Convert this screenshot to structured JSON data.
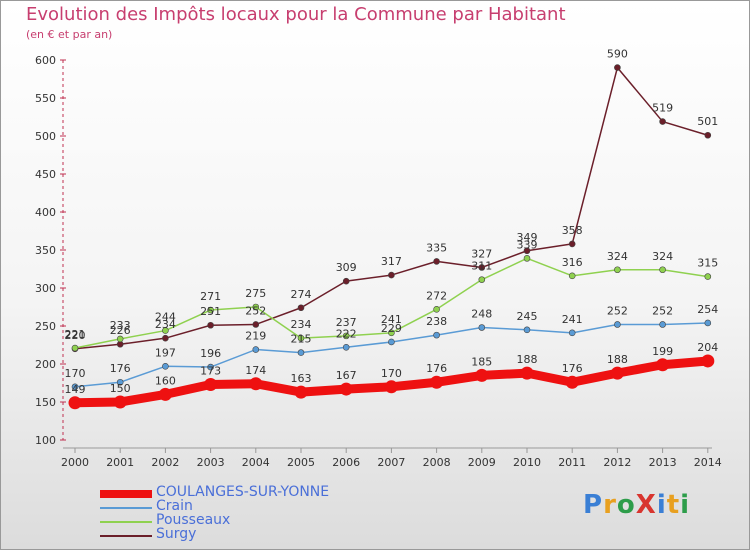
{
  "title": "Evolution des Impôts locaux pour la Commune par Habitant",
  "subtitle": "(en € et par an)",
  "logo": {
    "text": "Proxiti",
    "letters": [
      {
        "ch": "P",
        "color": "#3a7fd5"
      },
      {
        "ch": "r",
        "color": "#e8a020"
      },
      {
        "ch": "o",
        "color": "#2d9d4a"
      },
      {
        "ch": "X",
        "color": "#d8352f"
      },
      {
        "ch": "i",
        "color": "#3a7fd5"
      },
      {
        "ch": "t",
        "color": "#e8a020"
      },
      {
        "ch": "i",
        "color": "#2d9d4a"
      }
    ]
  },
  "chart_data": {
    "type": "line",
    "title": "Evolution des Impôts locaux pour la Commune par Habitant",
    "subtitle": "(en € et par an)",
    "x": [
      "2000",
      "2001",
      "2002",
      "2003",
      "2004",
      "2005",
      "2006",
      "2007",
      "2008",
      "2009",
      "2010",
      "2011",
      "2012",
      "2013",
      "2014"
    ],
    "ylim": [
      100,
      600
    ],
    "yticks": [
      100,
      150,
      200,
      250,
      300,
      350,
      400,
      450,
      500,
      550,
      600
    ],
    "grid": false,
    "legend_position": "bottom-left",
    "series": [
      {
        "name": "Surgy",
        "color": "#6b1f2a",
        "values": [
          220,
          226,
          234,
          251,
          252,
          274,
          309,
          317,
          335,
          327,
          349,
          358,
          590,
          519,
          501
        ],
        "labels": [
          "220",
          "226",
          "234",
          "251",
          "252",
          "274",
          "309",
          "317",
          "335",
          "327",
          "349",
          "358",
          "590",
          "519",
          "501"
        ]
      },
      {
        "name": "Pousseaux",
        "color": "#8fd14f",
        "values": [
          221,
          233,
          244,
          271,
          275,
          234,
          237,
          241,
          272,
          311,
          339,
          316,
          324,
          324,
          315
        ],
        "labels": [
          "221",
          "233",
          "244",
          "271",
          "275",
          "234",
          "237",
          "241",
          "272",
          "311",
          "339",
          "316",
          "324",
          "324",
          "315"
        ]
      },
      {
        "name": "Crain",
        "color": "#5a9bd5",
        "values": [
          170,
          176,
          197,
          196,
          219,
          215,
          222,
          229,
          238,
          248,
          245,
          241,
          252,
          252,
          254
        ],
        "labels": [
          "170",
          "176",
          "197",
          "196",
          "219",
          "215",
          "222",
          "229",
          "238",
          "248",
          "245",
          "241",
          "252",
          "252",
          "254"
        ]
      },
      {
        "name": "COULANGES-SUR-YONNE",
        "color": "#ee1111",
        "values": [
          149,
          150,
          160,
          173,
          174,
          163,
          167,
          170,
          176,
          185,
          188,
          176,
          188,
          199,
          204
        ],
        "labels": [
          "149",
          "150",
          "160",
          "173",
          "174",
          "163",
          "167",
          "170",
          "176",
          "185",
          "188",
          "176",
          "188",
          "199",
          "204"
        ]
      }
    ]
  },
  "legend": [
    {
      "name": "COULANGES-SUR-YONNE",
      "color": "#ee1111",
      "text_color": "#4a6fd8",
      "thick": true
    },
    {
      "name": "Crain",
      "color": "#5a9bd5",
      "text_color": "#4a6fd8",
      "thick": false
    },
    {
      "name": "Pousseaux",
      "color": "#8fd14f",
      "text_color": "#4a6fd8",
      "thick": false
    },
    {
      "name": "Surgy",
      "color": "#6b1f2a",
      "text_color": "#4a6fd8",
      "thick": false
    }
  ]
}
